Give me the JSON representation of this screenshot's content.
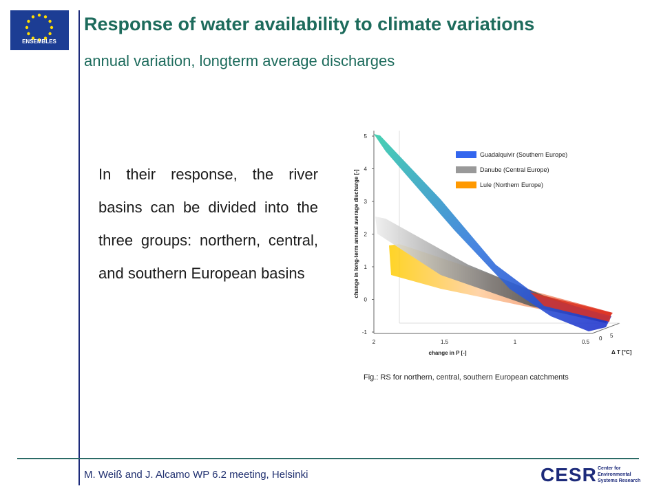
{
  "header": {
    "title": "Response of water availability to climate variations",
    "subtitle": "annual variation, longterm average discharges"
  },
  "logo": {
    "label": "ENSEMBLES"
  },
  "body": {
    "text": "In their response, the river basins can be divided into the three groups: northern, central, and southern European basins"
  },
  "figure": {
    "y_axis_label": "change in long-term annual average discharge [-]",
    "y_ticks": [
      "5",
      "4",
      "3",
      "2",
      "1",
      "0",
      "-1"
    ],
    "x_axis_label": "change in P [-]",
    "x_ticks": [
      "2",
      "1.5",
      "1",
      "0.5"
    ],
    "z_axis_label": "Δ T [°C]",
    "z_ticks": [
      "0",
      "5"
    ],
    "legend": [
      {
        "name": "Guadalquivir (Southern Europe)",
        "color": "#3366ee"
      },
      {
        "name": "Danube (Central Europe)",
        "color": "#999999"
      },
      {
        "name": "Lule (Northern Europe)",
        "color": "#ff9900"
      }
    ],
    "caption": "Fig.: RS for northern, central, southern European catchments"
  },
  "footer": {
    "text": "M. Weiß and J. Alcamo  WP 6.2 meeting, Helsinki",
    "logo": "CESR",
    "logo_sub": [
      "Center for",
      "Environmental",
      "Systems Research"
    ]
  }
}
